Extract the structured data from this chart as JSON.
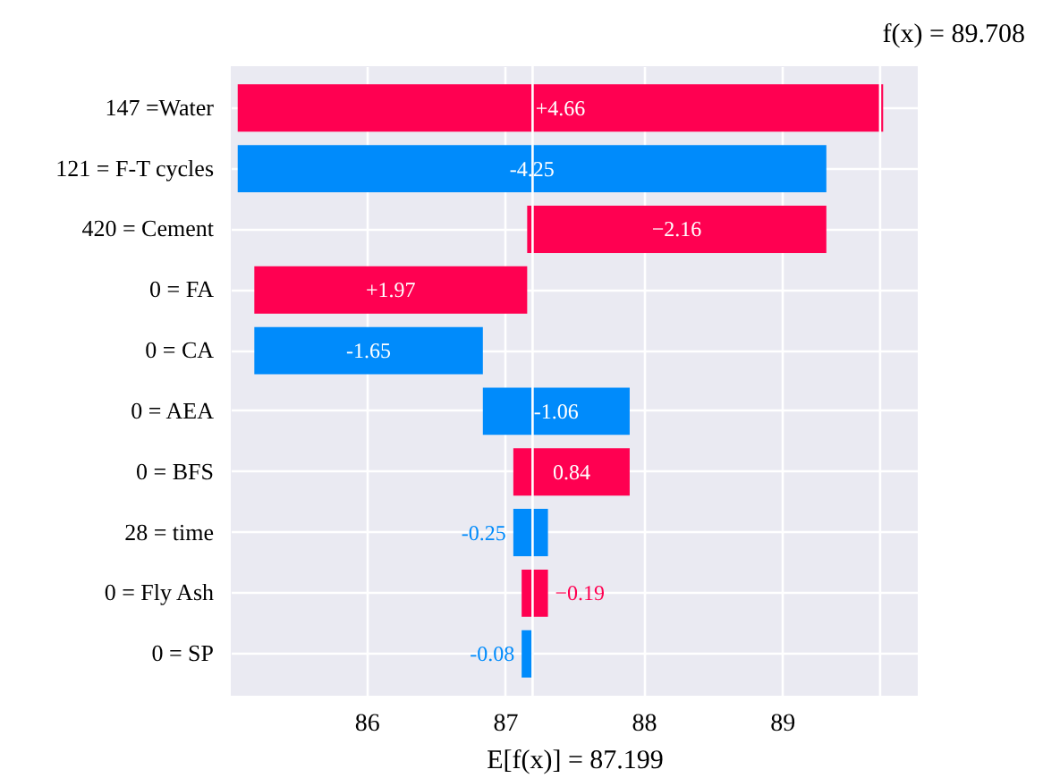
{
  "chart_data": {
    "type": "bar",
    "orientation": "horizontal",
    "title": "f(x) = 89.708",
    "xlabel": "E[f(x)] = 87.199",
    "categories": [
      "147 =Water",
      "121 = F-T cycles",
      "420 = Cement",
      "0 = FA",
      "0 = CA",
      "0 = AEA",
      "0 = BFS",
      "28 = time",
      "0 = Fly Ash",
      "0 = SP"
    ],
    "values": [
      4.66,
      -4.25,
      -2.16,
      1.97,
      -1.65,
      -1.06,
      0.84,
      -0.25,
      -0.19,
      -0.08
    ],
    "base": [
      85.07,
      89.32,
      89.32,
      85.19,
      86.84,
      87.9,
      87.06,
      87.31,
      87.31,
      87.2
    ],
    "colors": [
      "#ff0051",
      "#008bfb",
      "#ff0051",
      "#ff0051",
      "#008bfb",
      "#008bfb",
      "#ff0051",
      "#008bfb",
      "#ff0051",
      "#008bfb"
    ],
    "value_labels": [
      "+4.66",
      "-4.25",
      "−2.16",
      "+1.97",
      "-1.65",
      "-1.06",
      "0.84",
      "-0.25",
      "−0.19",
      "-0.08"
    ],
    "xlim": [
      85.02,
      89.98
    ],
    "xticks": [
      86,
      87,
      88,
      89
    ],
    "ref_lines": [
      {
        "axis": "x",
        "value": 87.199,
        "color": "#ffffff"
      },
      {
        "axis": "x",
        "value": 89.708,
        "color": "#ffffff"
      }
    ],
    "grid": true
  }
}
